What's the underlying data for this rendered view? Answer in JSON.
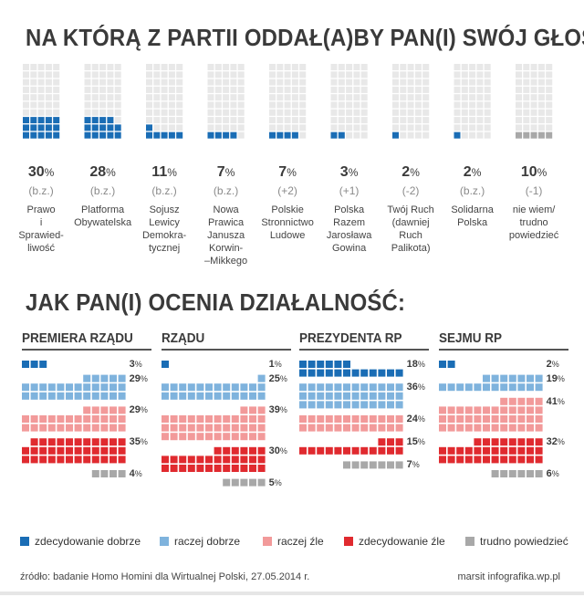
{
  "chart_data": [
    {
      "type": "waffle",
      "title": "NA KTÓRĄ Z PARTII ODDAŁ(A)BY PAN(I) SWÓJ GŁOS?",
      "parties": [
        {
          "name_lines": [
            "Prawo",
            "i",
            "Sprawied-",
            "liwość"
          ],
          "value": 30,
          "pct_label": "30",
          "change": "(b.z.)",
          "color": "#1a6db5"
        },
        {
          "name_lines": [
            "Platforma",
            "Obywatelska"
          ],
          "value": 28,
          "pct_label": "28",
          "change": "(b.z.)",
          "color": "#1a6db5"
        },
        {
          "name_lines": [
            "Sojusz",
            "Lewicy",
            "Demokra-",
            "tycznej"
          ],
          "value": 11,
          "pct_label": "11",
          "change": "(b.z.)",
          "color": "#1a6db5"
        },
        {
          "name_lines": [
            "Nowa",
            "Prawica",
            "Janusza",
            "Korwin-",
            "–Mikkego"
          ],
          "value": 7,
          "pct_label": "7",
          "change": "(b.z.)",
          "color": "#1a6db5"
        },
        {
          "name_lines": [
            "Polskie",
            "Stronnictwo",
            "Ludowe"
          ],
          "value": 7,
          "pct_label": "7",
          "change": "(+2)",
          "color": "#1a6db5"
        },
        {
          "name_lines": [
            "Polska",
            "Razem",
            "Jarosława",
            "Gowina"
          ],
          "value": 3,
          "pct_label": "3",
          "change": "(+1)",
          "color": "#1a6db5"
        },
        {
          "name_lines": [
            "Twój Ruch",
            "(dawniej",
            "Ruch",
            "Palikota)"
          ],
          "value": 2,
          "pct_label": "2",
          "change": "(-2)",
          "color": "#1a6db5"
        },
        {
          "name_lines": [
            "Solidarna",
            "Polska"
          ],
          "value": 2,
          "pct_label": "2",
          "change": "(b.z.)",
          "color": "#1a6db5"
        },
        {
          "name_lines": [
            "nie wiem/",
            "trudno",
            "powiedzieć"
          ],
          "value": 10,
          "pct_label": "10",
          "change": "(-1)",
          "color": "#a8a8a8"
        }
      ],
      "empty_color": "#e8e8e8"
    },
    {
      "type": "waffle",
      "title": "JAK PAN(I) OCENIA DZIAŁALNOŚĆ:",
      "categories": [
        {
          "name": "PREMIERA RZĄDU",
          "values": [
            3,
            29,
            29,
            35,
            4
          ]
        },
        {
          "name": "RZĄDU",
          "values": [
            1,
            25,
            39,
            30,
            5
          ]
        },
        {
          "name": "PREZYDENTA RP",
          "values": [
            18,
            36,
            24,
            15,
            7
          ]
        },
        {
          "name": "SEJMU RP",
          "values": [
            2,
            19,
            41,
            32,
            6
          ]
        }
      ],
      "series": [
        {
          "name": "zdecydowanie dobrze",
          "color": "#1a6db5"
        },
        {
          "name": "raczej dobrze",
          "color": "#7fb3dd"
        },
        {
          "name": "raczej źle",
          "color": "#f29a9a"
        },
        {
          "name": "zdecydowanie źle",
          "color": "#e02a2f"
        },
        {
          "name": "trudno powiedzieć",
          "color": "#a8a8a8"
        }
      ]
    }
  ],
  "percent_sign": "%",
  "source": "źródło: badanie Homo Homini dla Wirtualnej Polski, 27.05.2014 r.",
  "credit": "marsit infografika.wp.pl"
}
